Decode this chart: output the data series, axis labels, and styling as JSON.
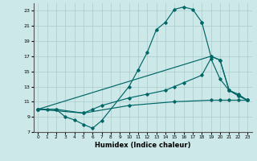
{
  "xlabel": "Humidex (Indice chaleur)",
  "bg_color": "#cce8e8",
  "grid_color": "#aacccc",
  "line_color": "#006666",
  "xlim": [
    -0.5,
    23.5
  ],
  "ylim": [
    7,
    24
  ],
  "xticks": [
    0,
    1,
    2,
    3,
    4,
    5,
    6,
    7,
    8,
    9,
    10,
    11,
    12,
    13,
    14,
    15,
    16,
    17,
    18,
    19,
    20,
    21,
    22,
    23
  ],
  "yticks": [
    7,
    9,
    11,
    13,
    15,
    17,
    19,
    21,
    23
  ],
  "curves": [
    {
      "x": [
        0,
        1,
        2,
        3,
        4,
        5,
        6,
        7,
        10,
        11,
        12,
        13,
        14,
        15,
        16,
        17,
        18
      ],
      "y": [
        10,
        10,
        10,
        9,
        8.6,
        8,
        7.5,
        8.5,
        13,
        15.2,
        17.5,
        20.5,
        21.5,
        23.2,
        23.5,
        23.2,
        21.5
      ]
    },
    {
      "x": [
        18,
        19,
        20,
        21,
        22,
        23
      ],
      "y": [
        21.5,
        17,
        16.5,
        12.5,
        11.8,
        11.2
      ]
    },
    {
      "x": [
        0,
        19,
        20,
        21,
        22,
        23
      ],
      "y": [
        10,
        17,
        16.5,
        12.5,
        11.8,
        11.2
      ]
    },
    {
      "x": [
        0,
        2,
        5,
        6,
        7,
        10,
        12,
        14,
        15,
        16,
        18,
        19,
        20,
        21,
        22,
        23
      ],
      "y": [
        10,
        10,
        9.5,
        10,
        10.5,
        11.5,
        12,
        12.5,
        13,
        13.5,
        14.5,
        16.7,
        14,
        12.5,
        12,
        11.2
      ]
    },
    {
      "x": [
        0,
        5,
        10,
        15,
        19,
        20,
        21,
        22,
        23
      ],
      "y": [
        10,
        9.5,
        10.5,
        11,
        11.2,
        11.2,
        11.2,
        11.2,
        11.2
      ]
    }
  ]
}
